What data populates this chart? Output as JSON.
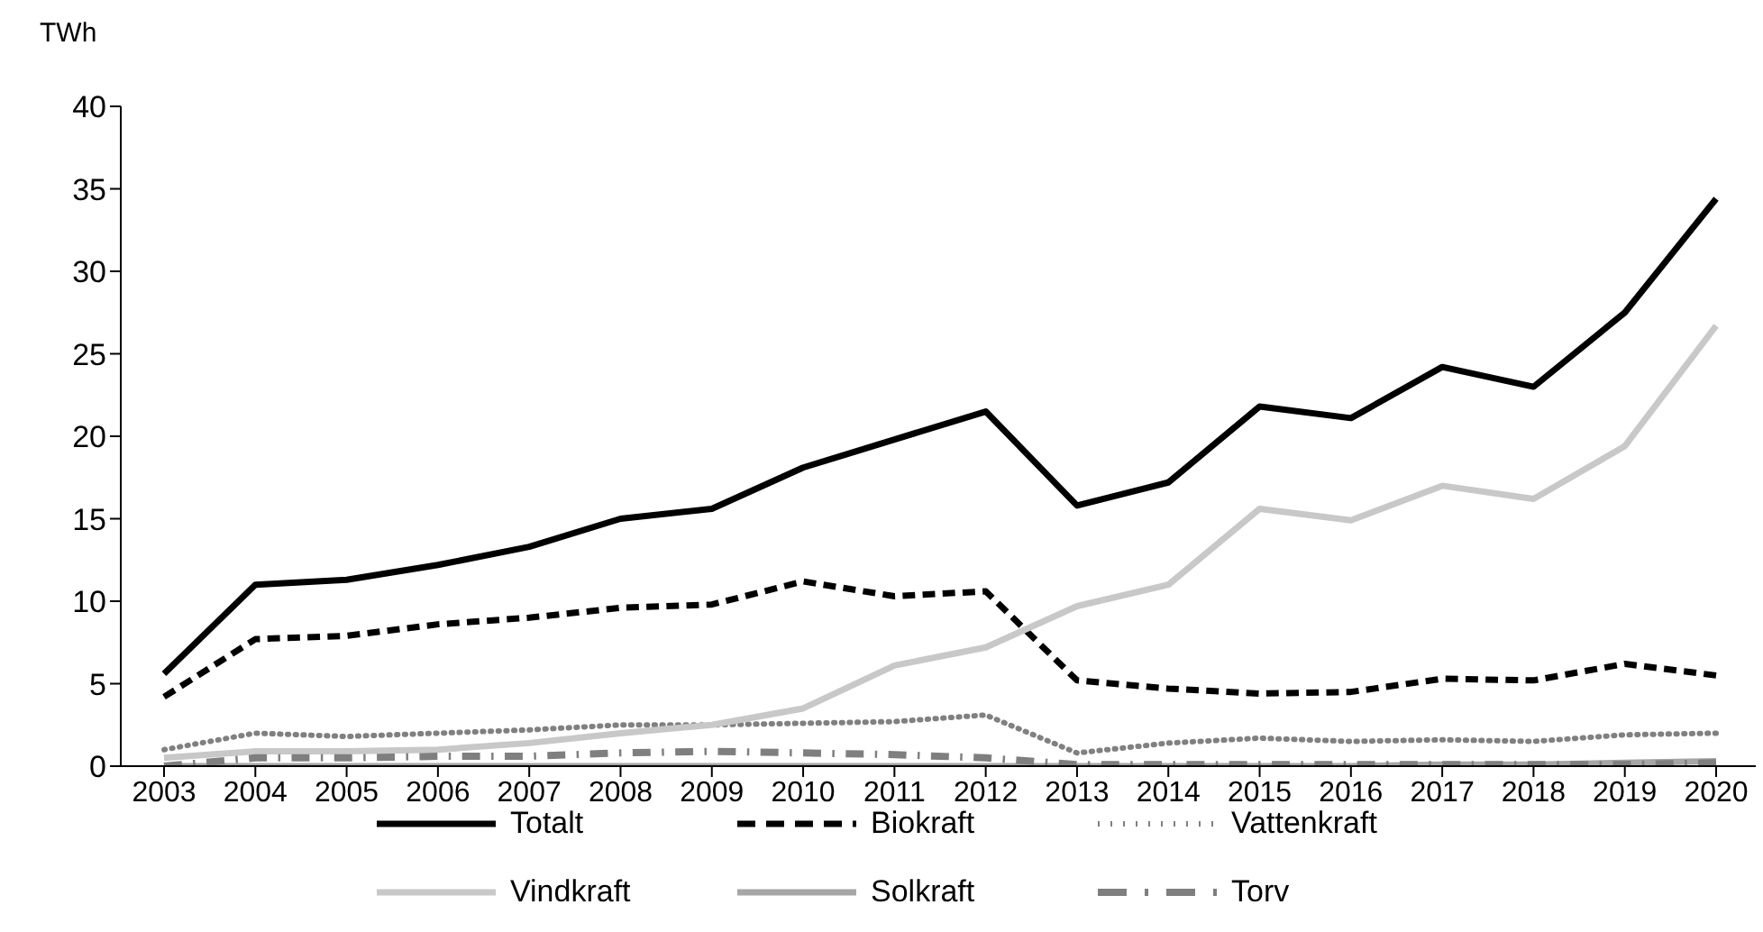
{
  "chart_data": {
    "type": "line",
    "ylabel": "TWh",
    "categories": [
      "2003",
      "2004",
      "2005",
      "2006",
      "2007",
      "2008",
      "2009",
      "2010",
      "2011",
      "2012",
      "2013",
      "2014",
      "2015",
      "2016",
      "2017",
      "2018",
      "2019",
      "2020"
    ],
    "series": [
      {
        "name": "Totalt",
        "color": "#000000",
        "line_style": "solid",
        "values": [
          5.6,
          11.0,
          11.3,
          12.2,
          13.3,
          15.0,
          15.6,
          18.1,
          19.8,
          21.5,
          15.8,
          17.2,
          21.8,
          21.1,
          24.2,
          23.0,
          27.5,
          34.4
        ]
      },
      {
        "name": "Biokraft",
        "color": "#000000",
        "line_style": "dashed",
        "values": [
          4.2,
          7.7,
          7.9,
          8.6,
          9.0,
          9.6,
          9.8,
          11.2,
          10.3,
          10.6,
          5.2,
          4.7,
          4.4,
          4.5,
          5.3,
          5.2,
          6.2,
          5.5
        ]
      },
      {
        "name": "Vattenkraft",
        "color": "#808080",
        "line_style": "dotted",
        "values": [
          1.0,
          2.0,
          1.8,
          2.0,
          2.2,
          2.5,
          2.5,
          2.6,
          2.7,
          3.1,
          0.8,
          1.4,
          1.7,
          1.5,
          1.6,
          1.5,
          1.9,
          2.0
        ]
      },
      {
        "name": "Vindkraft",
        "color": "#c8c8c8",
        "line_style": "solid",
        "values": [
          0.5,
          0.9,
          0.9,
          1.0,
          1.4,
          2.0,
          2.5,
          3.5,
          6.1,
          7.2,
          9.7,
          11.0,
          15.6,
          14.9,
          17.0,
          16.2,
          19.4,
          26.7
        ]
      },
      {
        "name": "Solkraft",
        "color": "#a6a6a6",
        "line_style": "solid",
        "values": [
          0,
          0,
          0,
          0,
          0,
          0,
          0,
          0,
          0,
          0,
          0,
          0,
          0,
          0,
          0.1,
          0.1,
          0.2,
          0.3
        ]
      },
      {
        "name": "Torv",
        "color": "#7f7f7f",
        "line_style": "dashdot",
        "values": [
          0,
          0.5,
          0.5,
          0.6,
          0.6,
          0.8,
          0.9,
          0.8,
          0.7,
          0.5,
          0.1,
          0.1,
          0.1,
          0.1,
          0.1,
          0.1,
          0.1,
          0.2
        ]
      }
    ],
    "ylim": [
      0,
      40
    ],
    "yticks": [
      0,
      5,
      10,
      15,
      20,
      25,
      30,
      35,
      40
    ],
    "grid": false,
    "legend": "bottom",
    "marker": "none"
  }
}
